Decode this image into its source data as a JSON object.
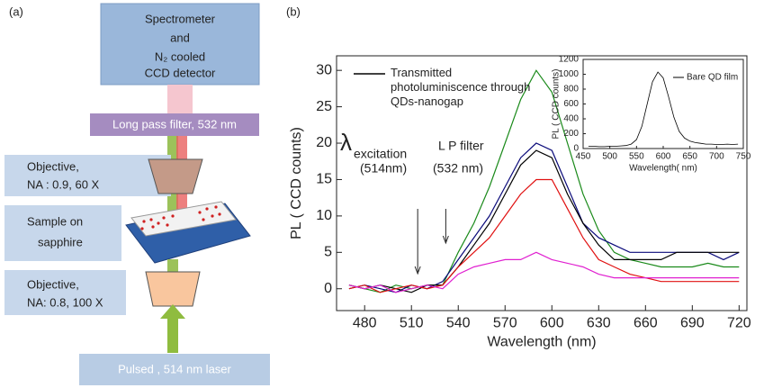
{
  "panel_a": {
    "label": "(a)",
    "spectrometer": [
      "Spectrometer",
      "and",
      "N₂ cooled",
      "CCD detector"
    ],
    "filter": "Long pass  filter, 532 nm",
    "objective_top": [
      "Objective,",
      "NA : 0.9, 60 X"
    ],
    "sample": [
      "Sample  on",
      "sapphire"
    ],
    "objective_bottom": [
      "Objective,",
      "NA: 0.8,  100 X"
    ],
    "laser": "Pulsed , 514 nm laser"
  },
  "panel_b_label": "(b)",
  "chart_data": [
    {
      "type": "line",
      "xlabel": "Wavelength (nm)",
      "ylabel": "PL ( CCD counts)",
      "xlim": [
        462,
        725
      ],
      "xticks": [
        480,
        510,
        540,
        570,
        600,
        630,
        660,
        690,
        720
      ],
      "ylim": [
        -3,
        32
      ],
      "yticks": [
        0,
        5,
        10,
        15,
        20,
        25,
        30
      ],
      "x": [
        470,
        480,
        490,
        500,
        510,
        520,
        530,
        540,
        550,
        560,
        570,
        580,
        590,
        600,
        610,
        620,
        630,
        640,
        650,
        660,
        670,
        680,
        690,
        700,
        710,
        720
      ],
      "series": [
        {
          "color": "#1a8a1a",
          "values": [
            0.5,
            0,
            -0.5,
            0.5,
            0,
            0.5,
            0.5,
            5,
            9,
            14,
            20,
            26,
            30,
            27,
            20,
            13,
            8,
            5,
            4,
            3.5,
            3,
            3,
            3,
            3.5,
            3,
            3
          ]
        },
        {
          "color": "#0a0a7a",
          "values": [
            0,
            0.5,
            0,
            -0.5,
            0.5,
            0,
            1,
            4,
            7,
            10,
            14,
            18,
            20,
            19,
            14,
            9,
            7,
            6,
            5,
            5,
            5,
            5,
            5,
            5,
            4,
            5
          ]
        },
        {
          "name": "Transmitted photoluminiscence through QDs-nanogap",
          "color": "#000000",
          "values": [
            0.5,
            0,
            0.5,
            0,
            -0.5,
            0.5,
            0.5,
            3,
            6,
            9,
            13,
            17,
            19,
            18,
            13,
            9,
            6,
            4,
            4,
            4,
            4,
            5,
            5,
            5,
            5,
            5
          ]
        },
        {
          "color": "#e01010",
          "values": [
            0,
            0.5,
            -0.5,
            0,
            0.5,
            0,
            0.5,
            3,
            5,
            7,
            10,
            13,
            15,
            15,
            11,
            7,
            4,
            3,
            2,
            1.5,
            1,
            1,
            1,
            1,
            1,
            1
          ]
        },
        {
          "color": "#e020d0",
          "values": [
            0.5,
            0,
            0.5,
            -0.5,
            0,
            0.5,
            0,
            2,
            3,
            3.5,
            4,
            4,
            5,
            4,
            3.5,
            3,
            2,
            1.5,
            1.5,
            1.5,
            1.5,
            1.5,
            1.5,
            1.5,
            1.5,
            1.5
          ]
        }
      ],
      "annotations": [
        {
          "symbol": "λ",
          "subscript": "excitation",
          "note": "(514nm)",
          "x": 514
        },
        {
          "label": "L P filter",
          "note": "(532 nm)",
          "x": 532
        }
      ]
    },
    {
      "type": "line",
      "xlabel": "Wavelength( nm)",
      "ylabel": "PL ( CCD counts)",
      "xlim": [
        450,
        750
      ],
      "xticks": [
        450,
        500,
        550,
        600,
        650,
        700,
        750
      ],
      "ylim": [
        0,
        1200
      ],
      "yticks": [
        0,
        200,
        400,
        600,
        800,
        1000,
        1200
      ],
      "x": [
        460,
        470,
        480,
        490,
        500,
        510,
        520,
        530,
        540,
        550,
        560,
        570,
        580,
        590,
        600,
        610,
        620,
        630,
        640,
        650,
        660,
        670,
        680,
        690,
        700,
        710,
        720,
        730,
        740
      ],
      "series": [
        {
          "name": "Bare QD film",
          "color": "#000000",
          "values": [
            30,
            30,
            25,
            25,
            30,
            30,
            35,
            40,
            60,
            120,
            300,
            600,
            900,
            1030,
            950,
            700,
            420,
            230,
            140,
            100,
            80,
            70,
            60,
            60,
            55,
            55,
            60,
            55,
            60
          ]
        }
      ]
    }
  ]
}
